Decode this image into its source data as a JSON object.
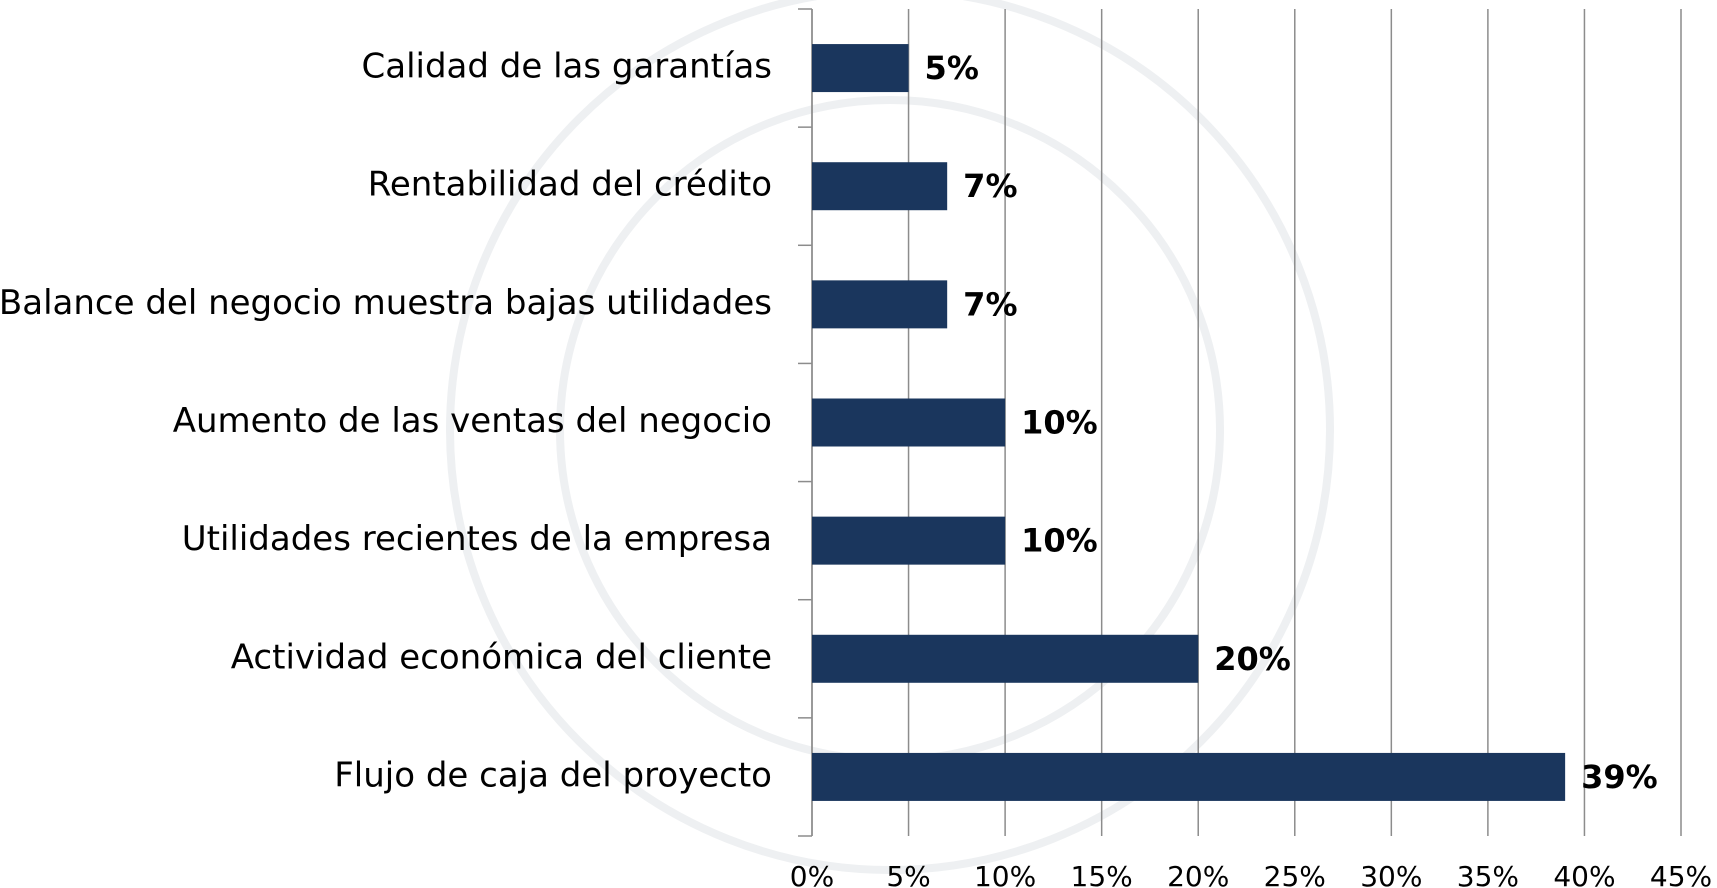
{
  "chart_data": {
    "type": "bar",
    "orientation": "horizontal",
    "categories": [
      "Calidad de las garantías",
      "Rentabilidad del crédito",
      "Balance del negocio muestra bajas utilidades",
      "Aumento de las ventas del negocio",
      "Utilidades recientes de la empresa",
      "Actividad económica del cliente",
      "Flujo de caja del proyecto"
    ],
    "values": [
      5,
      7,
      7,
      10,
      10,
      20,
      39
    ],
    "value_labels": [
      "5%",
      "7%",
      "7%",
      "10%",
      "10%",
      "20%",
      "39%"
    ],
    "color": "#1a365d",
    "xlim": [
      0,
      45
    ],
    "xticks": [
      {
        "value": 0,
        "label": "0%"
      },
      {
        "value": 5,
        "label": "5%"
      },
      {
        "value": 10,
        "label": "10%"
      },
      {
        "value": 15,
        "label": "15%"
      },
      {
        "value": 20,
        "label": "20%"
      },
      {
        "value": 25,
        "label": "25%"
      },
      {
        "value": 30,
        "label": "30%"
      },
      {
        "value": 35,
        "label": "35%"
      },
      {
        "value": 40,
        "label": "40%"
      },
      {
        "value": 45,
        "label": "45%"
      }
    ],
    "grid": true
  }
}
